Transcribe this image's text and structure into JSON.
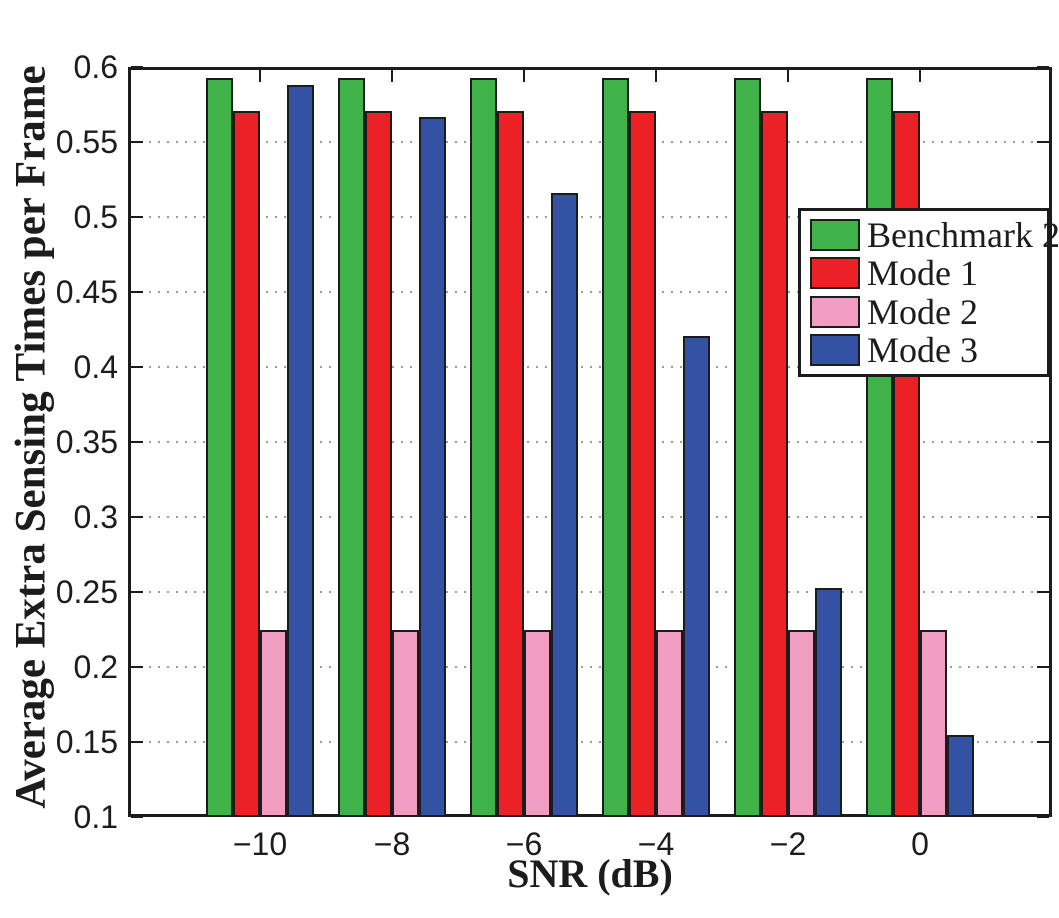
{
  "chart_data": {
    "type": "bar",
    "title": "",
    "xlabel": "SNR (dB)",
    "ylabel": "Average Extra Sensing Times per Frame",
    "categories": [
      -10,
      -8,
      -6,
      -4,
      -2,
      0
    ],
    "x_tick_labels": [
      "−10",
      "−8",
      "−6",
      "−4",
      "−2",
      "0"
    ],
    "y_tick_labels": [
      "0.6",
      "0.55",
      "0.5",
      "0.45",
      "0.4",
      "0.35",
      "0.3",
      "0.25",
      "0.2",
      "0.15",
      "0.1"
    ],
    "ylim": [
      0.1,
      0.6
    ],
    "ytick_step": 0.05,
    "grid": "horizontal dotted",
    "legend_position": "upper right",
    "bar_edge_color": "#1c1c1c",
    "series": [
      {
        "name": "Benchmark 2",
        "color": "#3FB24A",
        "values": [
          0.593,
          0.593,
          0.593,
          0.593,
          0.593,
          0.593
        ]
      },
      {
        "name": "Mode 1",
        "color": "#EB2126",
        "values": [
          0.571,
          0.571,
          0.571,
          0.571,
          0.571,
          0.571
        ]
      },
      {
        "name": "Mode 2",
        "color": "#F19DC1",
        "values": [
          0.225,
          0.225,
          0.225,
          0.225,
          0.225,
          0.225
        ]
      },
      {
        "name": "Mode 3",
        "color": "#3452A4",
        "values": [
          0.588,
          0.567,
          0.516,
          0.421,
          0.253,
          0.155
        ]
      }
    ]
  }
}
